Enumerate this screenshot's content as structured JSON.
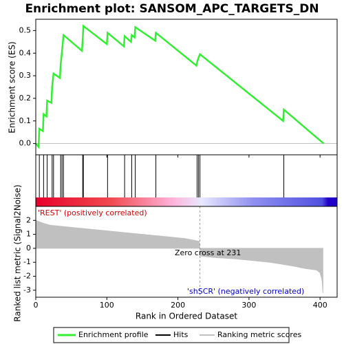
{
  "chart_data": [
    {
      "type": "line",
      "title": "Enrichment plot: SANSOM_APC_TARGETS_DN",
      "y_label": "Enrichment score (ES)",
      "x": [
        0,
        4,
        5,
        10,
        11,
        15,
        16,
        22,
        23,
        25,
        34,
        35,
        37,
        39,
        65,
        66,
        67,
        100,
        101,
        124,
        125,
        134,
        135,
        139,
        140,
        168,
        169,
        226,
        227,
        229,
        231,
        348,
        349,
        405
      ],
      "series": [
        {
          "name": "Enrichment profile",
          "color": "#33ee33",
          "values": [
            0,
            -0.015,
            0.065,
            0.055,
            0.13,
            0.12,
            0.19,
            0.18,
            0.25,
            0.31,
            0.29,
            0.35,
            0.41,
            0.48,
            0.41,
            0.46,
            0.52,
            0.44,
            0.49,
            0.43,
            0.475,
            0.45,
            0.48,
            0.47,
            0.515,
            0.455,
            0.49,
            0.345,
            0.36,
            0.38,
            0.395,
            0.1,
            0.15,
            0.0
          ]
        }
      ],
      "xlim": [
        0,
        424
      ],
      "ylim": [
        -0.05,
        0.55
      ],
      "yticks": [
        {
          "value": 0,
          "label": "0.0"
        },
        0.1,
        0.2,
        0.3,
        0.4,
        0.5
      ]
    },
    {
      "type": "rug",
      "series": [
        {
          "name": "Hits",
          "color": "#000000",
          "x": [
            5,
            11,
            16,
            23,
            25,
            35,
            37,
            39,
            66,
            67,
            101,
            125,
            135,
            140,
            169,
            227,
            229,
            231,
            349
          ]
        }
      ],
      "xlim": [
        0,
        424
      ]
    },
    {
      "type": "area",
      "x_label": "Rank in Ordered Dataset",
      "y_label": "Ranked list metric (Signal2Noise)",
      "x": [
        0,
        5,
        10,
        20,
        30,
        50,
        70,
        100,
        130,
        160,
        190,
        210,
        225,
        230,
        231,
        232,
        250,
        280,
        300,
        330,
        360,
        380,
        395,
        400,
        402,
        403,
        404
      ],
      "series": [
        {
          "name": "Ranking metric scores",
          "color": "#c0c0c0",
          "values": [
            2.0,
            1.9,
            1.8,
            1.65,
            1.6,
            1.5,
            1.4,
            1.25,
            1.1,
            0.95,
            0.8,
            0.7,
            0.55,
            0.5,
            0,
            -0.55,
            -0.65,
            -0.75,
            -0.85,
            -1.0,
            -1.25,
            -1.45,
            -1.55,
            -1.75,
            -2.1,
            -2.4,
            -3.2
          ]
        }
      ],
      "xlim": [
        0,
        424
      ],
      "ylim": [
        -3.5,
        3
      ],
      "xticks": [
        0,
        100,
        200,
        300,
        400
      ],
      "yticks": [
        2,
        1,
        0,
        -1,
        -2,
        -3
      ],
      "zero_cross": 231,
      "annotations": {
        "positive": "'REST' (positively correlated)",
        "zero": "Zero cross at 231",
        "negative": "'shSCR' (negatively correlated)"
      }
    }
  ]
}
